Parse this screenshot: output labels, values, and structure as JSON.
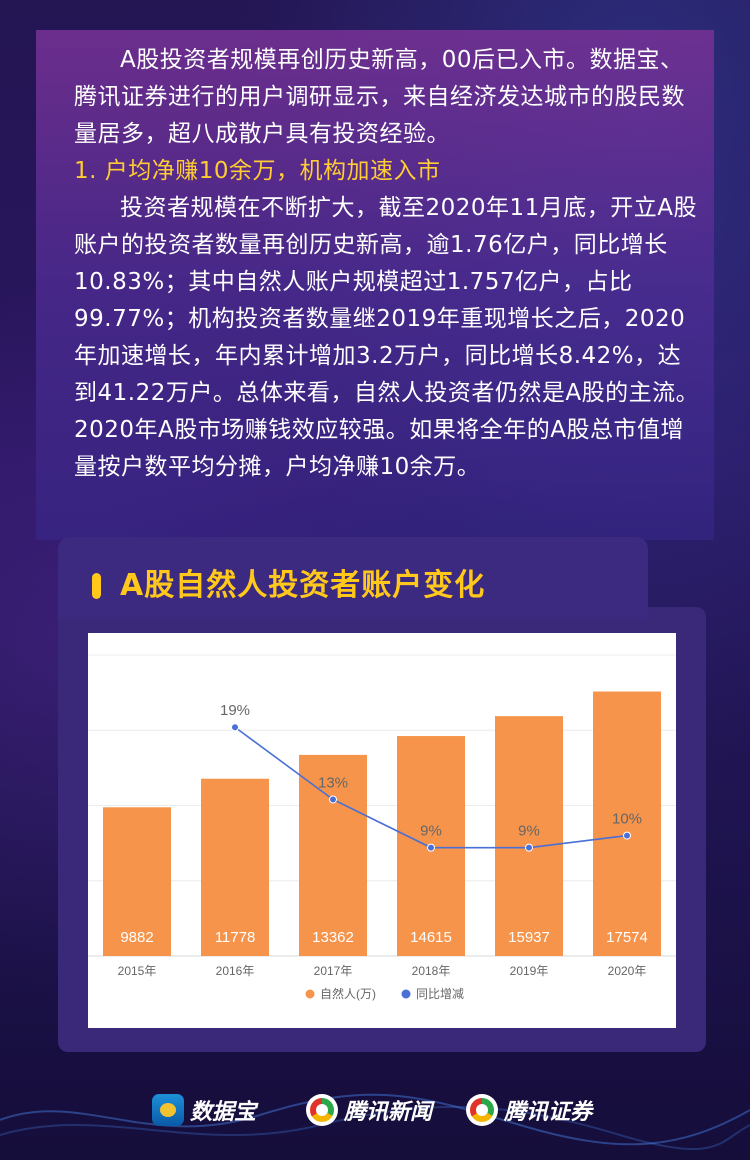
{
  "intro": {
    "paragraph": "A股投资者规模再创历史新高，00后已入市。数据宝、腾讯证券进行的用户调研显示，来自经济发达城市的股民数量居多，超八成散户具有投资经验。"
  },
  "section1": {
    "heading": "1. 户均净赚10余万，机构加速入市",
    "body": "投资者规模在不断扩大，截至2020年11月底，开立A股账户的投资者数量再创历史新高，逾1.76亿户，同比增长10.83%；其中自然人账户规模超过1.757亿户，占比99.77%；机构投资者数量继2019年重现增长之后，2020年加速增长，年内累计增加3.2万户，同比增长8.42%，达到41.22万户。总体来看，自然人投资者仍然是A股的主流。2020年A股市场赚钱效应较强。如果将全年的A股总市值增量按户数平均分摊，户均净赚10余万。"
  },
  "chart_card": {
    "title": "A股自然人投资者账户变化"
  },
  "chart_data": {
    "type": "bar",
    "title": "",
    "xlabel": "",
    "ylabel": "",
    "categories": [
      "2015年",
      "2016年",
      "2017年",
      "2018年",
      "2019年",
      "2020年"
    ],
    "series": [
      {
        "name": "自然人(万)",
        "type": "bar",
        "values": [
          9882,
          11778,
          13362,
          14615,
          15937,
          17574
        ],
        "labels": [
          "9882",
          "11778",
          "13362",
          "14615",
          "15937",
          "17574"
        ],
        "color": "#f5944a"
      },
      {
        "name": "同比增减",
        "type": "line",
        "x": [
          "2016年",
          "2017年",
          "2018年",
          "2019年",
          "2020年"
        ],
        "values": [
          19,
          13,
          9,
          9,
          10
        ],
        "labels": [
          "19%",
          "13%",
          "9%",
          "9%",
          "10%"
        ],
        "color": "#4a6fd6"
      }
    ],
    "bar_ylim": [
      0,
      20000
    ],
    "line_ylim": [
      0,
      25
    ],
    "grid": true,
    "legend_position": "bottom"
  },
  "footer": {
    "brands": [
      "数据宝",
      "腾讯新闻",
      "腾讯证券"
    ]
  },
  "colors": {
    "accent": "#ffc81a",
    "bar": "#f5944a",
    "line": "#4a6fd6"
  }
}
